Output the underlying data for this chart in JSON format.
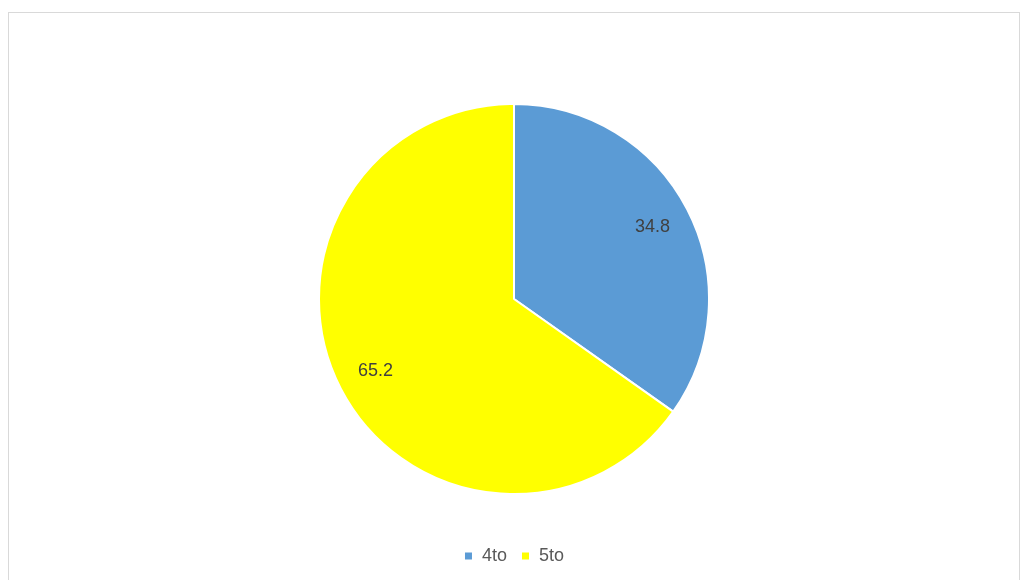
{
  "chart_data": {
    "type": "pie",
    "categories": [
      "4to",
      "5to"
    ],
    "values": [
      34.8,
      65.2
    ],
    "colors": [
      "#5b9bd5",
      "#ffff00"
    ],
    "data_labels": true,
    "legend": "bottom"
  }
}
